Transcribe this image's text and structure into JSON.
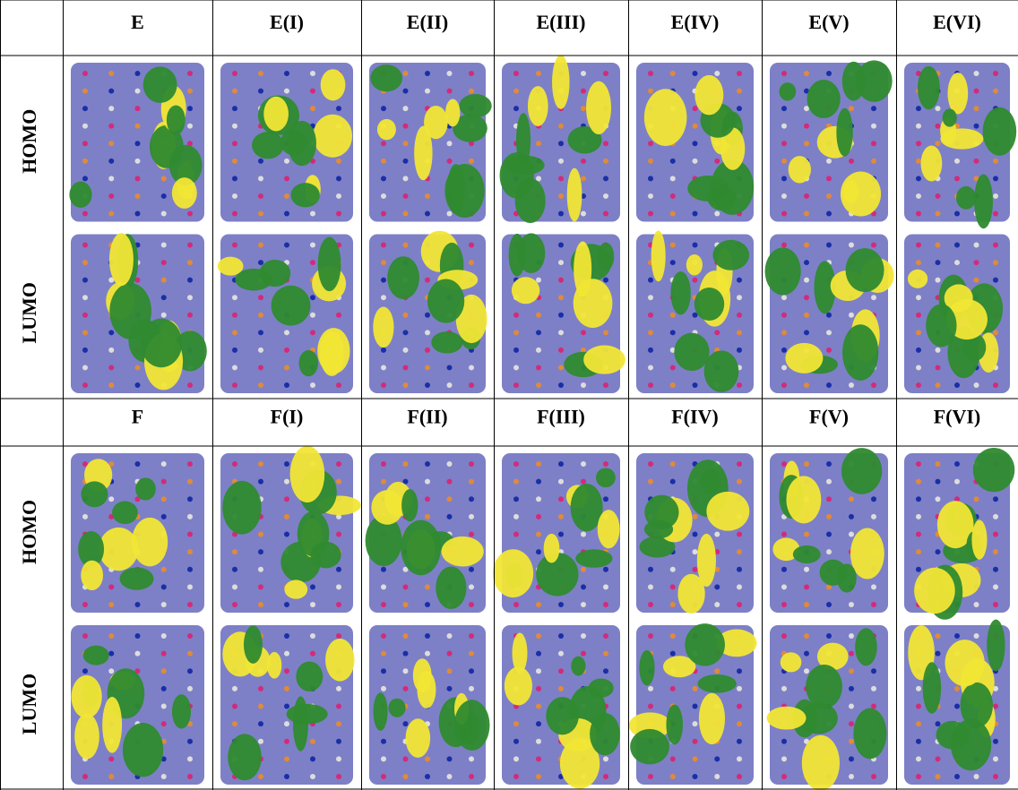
{
  "table": {
    "sections": [
      {
        "headers": [
          "E",
          "E(I)",
          "E(II)",
          "E(III)",
          "E(IV)",
          "E(V)",
          "E(VI)"
        ],
        "rows": [
          "HOMO",
          "LUMO"
        ]
      },
      {
        "headers": [
          "F",
          "F(I)",
          "F(II)",
          "F(III)",
          "F(IV)",
          "F(V)",
          "F(VI)"
        ],
        "rows": [
          "HOMO",
          "LUMO"
        ]
      }
    ]
  }
}
